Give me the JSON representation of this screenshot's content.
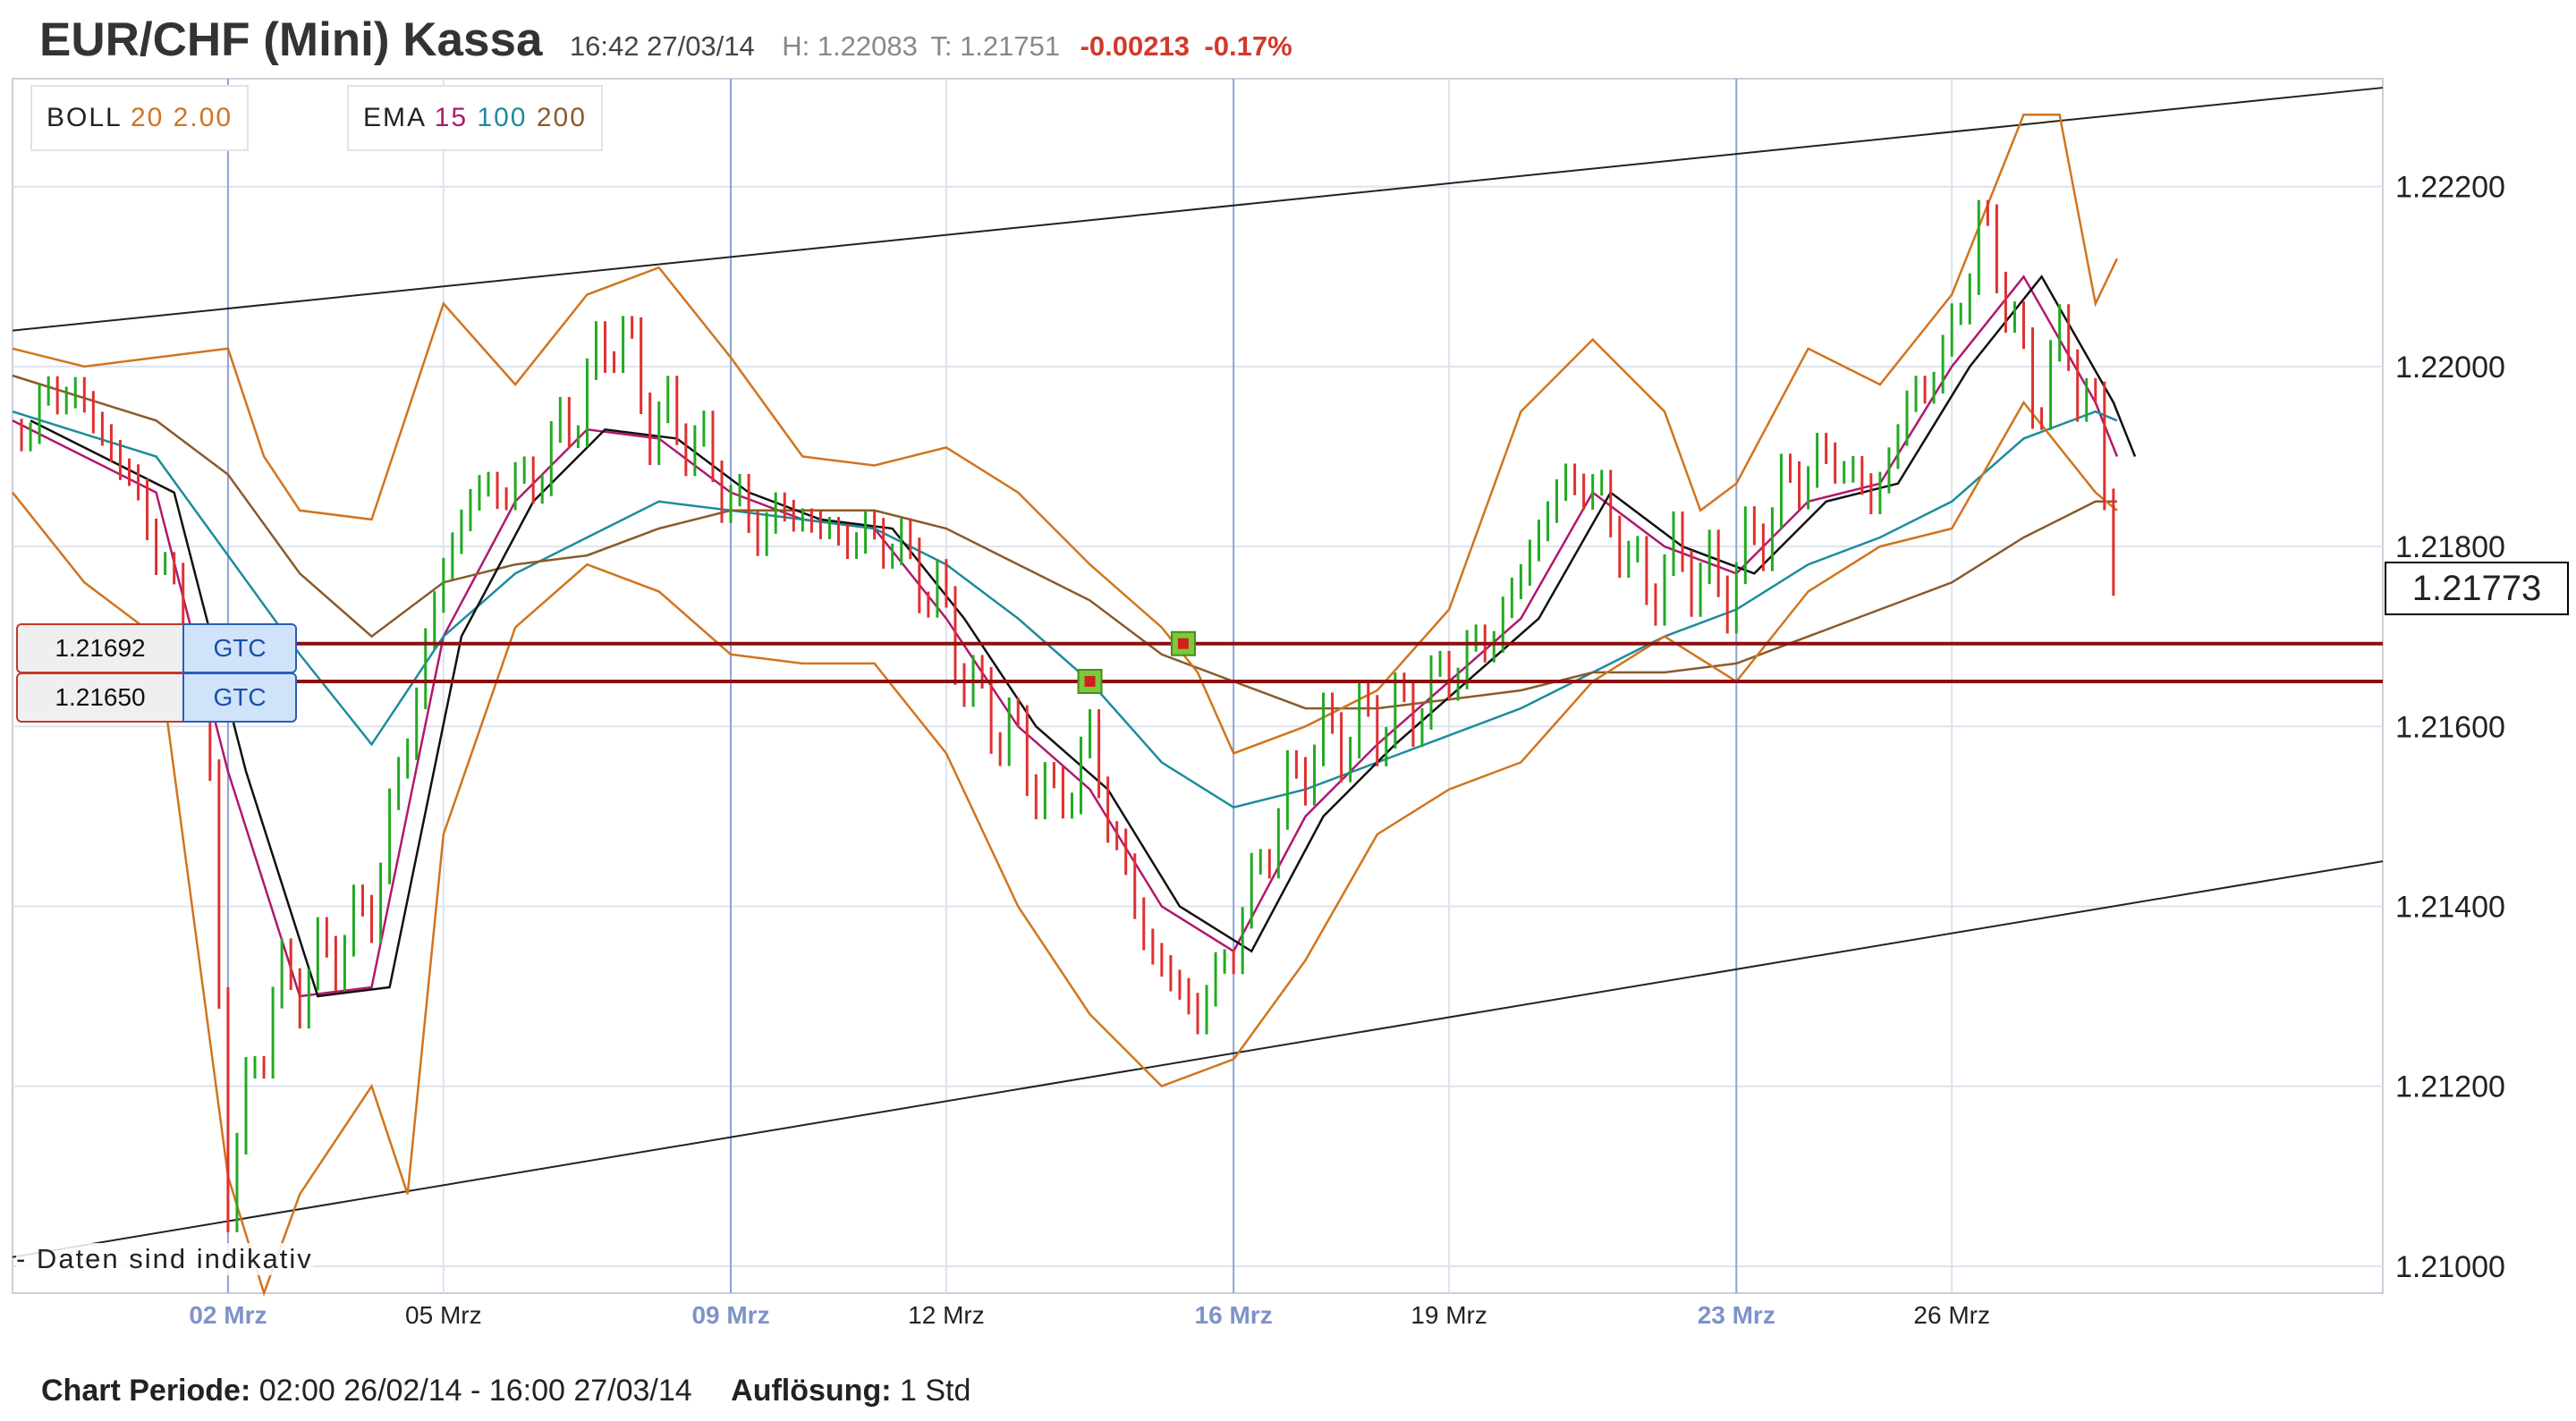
{
  "header": {
    "title": "EUR/CHF (Mini) Kassa",
    "time": "16:42 27/03/14",
    "high": "H: 1.22083",
    "low": "T: 1.21751",
    "change": "-0.00213",
    "change_pct": "-0.17%"
  },
  "legend": {
    "boll": {
      "name": "BOLL",
      "period": "20",
      "dev": "2.00"
    },
    "ema": {
      "name": "EMA",
      "p1": "15",
      "p2": "100",
      "p3": "200"
    }
  },
  "orders": [
    {
      "price": "1.21692",
      "type": "GTC"
    },
    {
      "price": "1.21650",
      "type": "GTC"
    }
  ],
  "note": "- Daten sind indikativ",
  "current_price": "1.21773",
  "footer": {
    "period_label": "Chart Periode:",
    "period_value": "02:00 26/02/14 - 16:00 27/03/14",
    "resolution_label": "Auflösung:",
    "resolution_value": "1 Std"
  },
  "colors": {
    "up": "#22aa22",
    "down": "#e03030",
    "boll": "#d2741e",
    "ema15": "#b0186e",
    "ema100": "#1c8c9c",
    "ema200": "#8a5a2a",
    "ema_black": "#111111",
    "order_line": "#8b1010",
    "weekly_grid": "#8ea2d6",
    "grid": "#dde3ee"
  },
  "chart_data": {
    "type": "candlestick",
    "x_axis": {
      "range": [
        0,
        33
      ],
      "ticks": [
        {
          "x": 3,
          "label": "02 Mrz",
          "weekly": true
        },
        {
          "x": 6,
          "label": "05 Mrz",
          "weekly": false
        },
        {
          "x": 10,
          "label": "09 Mrz",
          "weekly": true
        },
        {
          "x": 13,
          "label": "12 Mrz",
          "weekly": false
        },
        {
          "x": 17,
          "label": "16 Mrz",
          "weekly": true
        },
        {
          "x": 20,
          "label": "19 Mrz",
          "weekly": false
        },
        {
          "x": 24,
          "label": "23 Mrz",
          "weekly": true
        },
        {
          "x": 27,
          "label": "26 Mrz",
          "weekly": false
        }
      ]
    },
    "y_axis": {
      "range": [
        1.2097,
        1.2232
      ],
      "ticks": [
        1.21,
        1.212,
        1.214,
        1.216,
        1.218,
        1.22,
        1.222
      ],
      "tick_labels": [
        "1.21000",
        "1.21200",
        "1.21400",
        "1.21600",
        "1.21800",
        "1.22000",
        "1.22200"
      ]
    },
    "price_path": [
      [
        0.0,
        1.2193
      ],
      [
        0.8,
        1.2198
      ],
      [
        1.6,
        1.2188
      ],
      [
        2.2,
        1.2176
      ],
      [
        2.7,
        1.216
      ],
      [
        3.0,
        1.2109
      ],
      [
        3.6,
        1.213
      ],
      [
        4.2,
        1.2133
      ],
      [
        5.0,
        1.214
      ],
      [
        5.6,
        1.2163
      ],
      [
        6.0,
        1.2178
      ],
      [
        6.4,
        1.2186
      ],
      [
        7.2,
        1.2187
      ],
      [
        7.9,
        1.2196
      ],
      [
        8.4,
        1.2205
      ],
      [
        8.9,
        1.2194
      ],
      [
        9.4,
        1.2193
      ],
      [
        9.8,
        1.2188
      ],
      [
        10.3,
        1.2182
      ],
      [
        10.8,
        1.2184
      ],
      [
        11.5,
        1.2181
      ],
      [
        12.2,
        1.2181
      ],
      [
        12.9,
        1.2174
      ],
      [
        13.4,
        1.2163
      ],
      [
        13.9,
        1.2159
      ],
      [
        14.5,
        1.2151
      ],
      [
        15.0,
        1.2158
      ],
      [
        15.5,
        1.2143
      ],
      [
        15.9,
        1.2134
      ],
      [
        16.5,
        1.2128
      ],
      [
        17.0,
        1.2136
      ],
      [
        17.6,
        1.215
      ],
      [
        18.1,
        1.2158
      ],
      [
        18.8,
        1.216
      ],
      [
        19.5,
        1.2162
      ],
      [
        20.1,
        1.2167
      ],
      [
        20.6,
        1.217
      ],
      [
        21.0,
        1.2177
      ],
      [
        21.4,
        1.2185
      ],
      [
        21.8,
        1.2188
      ],
      [
        22.2,
        1.2184
      ],
      [
        22.7,
        1.2175
      ],
      [
        23.2,
        1.2179
      ],
      [
        23.8,
        1.2175
      ],
      [
        24.2,
        1.218
      ],
      [
        24.8,
        1.2188
      ],
      [
        25.4,
        1.219
      ],
      [
        25.9,
        1.2185
      ],
      [
        26.4,
        1.2196
      ],
      [
        26.9,
        1.2201
      ],
      [
        27.4,
        1.2216
      ],
      [
        27.7,
        1.221
      ],
      [
        28.1,
        1.2196
      ],
      [
        28.6,
        1.2203
      ],
      [
        29.0,
        1.2193
      ],
      [
        29.3,
        1.2177
      ]
    ],
    "series": [
      {
        "name": "EMA 15",
        "points": [
          [
            0,
            1.2194
          ],
          [
            2,
            1.2186
          ],
          [
            3,
            1.2155
          ],
          [
            4,
            1.213
          ],
          [
            5,
            1.2131
          ],
          [
            6,
            1.217
          ],
          [
            7,
            1.2185
          ],
          [
            8,
            1.2193
          ],
          [
            9,
            1.2192
          ],
          [
            10,
            1.2186
          ],
          [
            11,
            1.2183
          ],
          [
            12,
            1.2182
          ],
          [
            13,
            1.2172
          ],
          [
            14,
            1.216
          ],
          [
            15,
            1.2153
          ],
          [
            16,
            1.214
          ],
          [
            17,
            1.2135
          ],
          [
            18,
            1.215
          ],
          [
            19,
            1.2158
          ],
          [
            20,
            1.2165
          ],
          [
            21,
            1.2172
          ],
          [
            22,
            1.2186
          ],
          [
            23,
            1.218
          ],
          [
            24,
            1.2177
          ],
          [
            25,
            1.2185
          ],
          [
            26,
            1.2187
          ],
          [
            27,
            1.22
          ],
          [
            28,
            1.221
          ],
          [
            29,
            1.2196
          ],
          [
            29.3,
            1.219
          ]
        ]
      },
      {
        "name": "EMA 100",
        "points": [
          [
            0,
            1.2195
          ],
          [
            2,
            1.219
          ],
          [
            4,
            1.2168
          ],
          [
            5,
            1.2158
          ],
          [
            6,
            1.217
          ],
          [
            7,
            1.2177
          ],
          [
            8,
            1.2181
          ],
          [
            9,
            1.2185
          ],
          [
            10,
            1.2184
          ],
          [
            11,
            1.2183
          ],
          [
            12,
            1.2182
          ],
          [
            13,
            1.2178
          ],
          [
            14,
            1.2172
          ],
          [
            15,
            1.2165
          ],
          [
            16,
            1.2156
          ],
          [
            17,
            1.2151
          ],
          [
            18,
            1.2153
          ],
          [
            19,
            1.2156
          ],
          [
            20,
            1.2159
          ],
          [
            21,
            1.2162
          ],
          [
            22,
            1.2166
          ],
          [
            23,
            1.217
          ],
          [
            24,
            1.2173
          ],
          [
            25,
            1.2178
          ],
          [
            26,
            1.2181
          ],
          [
            27,
            1.2185
          ],
          [
            28,
            1.2192
          ],
          [
            29,
            1.2195
          ],
          [
            29.3,
            1.2194
          ]
        ]
      },
      {
        "name": "EMA 200",
        "points": [
          [
            0,
            1.2199
          ],
          [
            2,
            1.2194
          ],
          [
            3,
            1.2188
          ],
          [
            4,
            1.2177
          ],
          [
            5,
            1.217
          ],
          [
            6,
            1.2176
          ],
          [
            7,
            1.2178
          ],
          [
            8,
            1.2179
          ],
          [
            9,
            1.2182
          ],
          [
            10,
            1.2184
          ],
          [
            11,
            1.2184
          ],
          [
            12,
            1.2184
          ],
          [
            13,
            1.2182
          ],
          [
            14,
            1.2178
          ],
          [
            15,
            1.2174
          ],
          [
            16,
            1.2168
          ],
          [
            17,
            1.2165
          ],
          [
            18,
            1.2162
          ],
          [
            19,
            1.2162
          ],
          [
            20,
            1.2163
          ],
          [
            21,
            1.2164
          ],
          [
            22,
            1.2166
          ],
          [
            23,
            1.2166
          ],
          [
            24,
            1.2167
          ],
          [
            25,
            1.217
          ],
          [
            26,
            1.2173
          ],
          [
            27,
            1.2176
          ],
          [
            28,
            1.2181
          ],
          [
            29,
            1.2185
          ],
          [
            29.3,
            1.2185
          ]
        ]
      },
      {
        "name": "BOLL upper",
        "points": [
          [
            0,
            1.2202
          ],
          [
            1,
            1.22
          ],
          [
            2,
            1.2201
          ],
          [
            3,
            1.2202
          ],
          [
            3.5,
            1.219
          ],
          [
            4,
            1.2184
          ],
          [
            5,
            1.2183
          ],
          [
            5.5,
            1.2195
          ],
          [
            6,
            1.2207
          ],
          [
            7,
            1.2198
          ],
          [
            8,
            1.2208
          ],
          [
            9,
            1.2211
          ],
          [
            10,
            1.2201
          ],
          [
            11,
            1.219
          ],
          [
            12,
            1.2189
          ],
          [
            13,
            1.2191
          ],
          [
            14,
            1.2186
          ],
          [
            15,
            1.2178
          ],
          [
            16,
            1.2171
          ],
          [
            16.5,
            1.2166
          ],
          [
            17,
            1.2157
          ],
          [
            18,
            1.216
          ],
          [
            19,
            1.2164
          ],
          [
            20,
            1.2173
          ],
          [
            21,
            1.2195
          ],
          [
            22,
            1.2203
          ],
          [
            23,
            1.2195
          ],
          [
            23.5,
            1.2184
          ],
          [
            24,
            1.2187
          ],
          [
            25,
            1.2202
          ],
          [
            26,
            1.2198
          ],
          [
            27,
            1.2208
          ],
          [
            28,
            1.2228
          ],
          [
            28.5,
            1.2228
          ],
          [
            29,
            1.2207
          ],
          [
            29.3,
            1.2212
          ]
        ]
      },
      {
        "name": "BOLL lower",
        "points": [
          [
            0,
            1.2186
          ],
          [
            1,
            1.2176
          ],
          [
            2,
            1.217
          ],
          [
            3,
            1.211
          ],
          [
            3.5,
            1.2097
          ],
          [
            4,
            1.2108
          ],
          [
            5,
            1.212
          ],
          [
            5.5,
            1.2108
          ],
          [
            6,
            1.2148
          ],
          [
            7,
            1.2171
          ],
          [
            8,
            1.2178
          ],
          [
            9,
            1.2175
          ],
          [
            10,
            1.2168
          ],
          [
            11,
            1.2167
          ],
          [
            12,
            1.2167
          ],
          [
            13,
            1.2157
          ],
          [
            14,
            1.214
          ],
          [
            15,
            1.2128
          ],
          [
            16,
            1.212
          ],
          [
            17,
            1.2123
          ],
          [
            18,
            1.2134
          ],
          [
            19,
            1.2148
          ],
          [
            20,
            1.2153
          ],
          [
            21,
            1.2156
          ],
          [
            22,
            1.2165
          ],
          [
            23,
            1.217
          ],
          [
            24,
            1.2165
          ],
          [
            25,
            1.2175
          ],
          [
            26,
            1.218
          ],
          [
            27,
            1.2182
          ],
          [
            28,
            1.2196
          ],
          [
            29,
            1.2186
          ],
          [
            29.3,
            1.2184
          ]
        ]
      }
    ],
    "trendlines": [
      {
        "from": [
          0,
          1.2204
        ],
        "to": [
          33,
          1.2231
        ]
      },
      {
        "from": [
          0,
          1.2101
        ],
        "to": [
          33,
          1.2145
        ]
      }
    ],
    "horizontal_lines": [
      1.21692,
      1.2165
    ],
    "markers": [
      [
        15.0,
        1.2165
      ],
      [
        16.3,
        1.21692
      ]
    ]
  }
}
